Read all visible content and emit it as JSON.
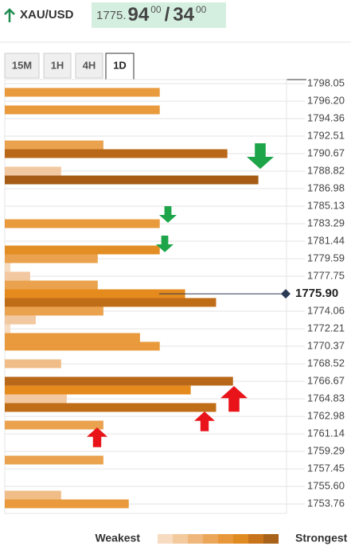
{
  "chart_data": {
    "type": "bar",
    "orientation": "horizontal",
    "symbol": "XAU/USD",
    "quote": {
      "big_figure": "1775.",
      "bid": "94",
      "bid_pips": "00",
      "separator": "/",
      "ask": "34",
      "ask_pips": "00"
    },
    "timeframes": [
      "15M",
      "1H",
      "4H",
      "1D"
    ],
    "active_timeframe": 3,
    "ylim": [
      1752.76,
      1798.47
    ],
    "xlim": [
      0,
      100
    ],
    "yticks": [
      1798.05,
      {
        "value": 1796.2,
        "label": "1796.20"
      },
      1794.36,
      1792.51,
      1790.67,
      1788.82,
      1786.98,
      1785.13,
      1783.29,
      1781.44,
      1779.59,
      1777.75,
      1774.06,
      1772.21,
      1770.37,
      1768.52,
      1766.67,
      1764.83,
      1762.98,
      1761.14,
      1759.29,
      1757.45,
      {
        "value": 1755.6,
        "label": "1755.60"
      },
      1753.76
    ],
    "current_price": {
      "value": 1775.9,
      "label": "1775.90"
    },
    "y": [
      1797.13,
      1795.28,
      1791.59,
      1790.67,
      1788.83,
      1787.9,
      1783.29,
      1780.52,
      1779.6,
      1778.68,
      1777.76,
      1776.83,
      1775.91,
      1774.99,
      1774.07,
      1773.14,
      1772.22,
      1771.3,
      1770.38,
      1768.53,
      1766.69,
      1765.76,
      1764.84,
      1763.92,
      1762.07,
      1758.38,
      1754.69,
      1753.77
    ],
    "values": [
      55,
      55,
      35,
      79,
      20,
      90,
      55,
      55,
      33,
      2,
      9,
      33,
      64,
      75,
      35,
      11,
      2,
      48,
      55,
      20,
      81,
      66,
      22,
      75,
      35,
      35,
      20,
      44
    ],
    "colors": [
      "#e89a3c",
      "#e89a3c",
      "#eaa24e",
      "#b86818",
      "#f2c8a0",
      "#a65c14",
      "#e89a3c",
      "#e28e24",
      "#eaa24e",
      "#f6dcc0",
      "#f2c8a0",
      "#eaa24e",
      "#e58a1c",
      "#c06d18",
      "#eaa24e",
      "#f2c8a0",
      "#f6dcc0",
      "#e89a3c",
      "#e89a3c",
      "#f0bd88",
      "#b86818",
      "#e58a1c",
      "#f2c8a0",
      "#c06d18",
      "#eaa24e",
      "#eaa24e",
      "#f0bd88",
      "#e89a3c"
    ],
    "legend": {
      "weak": "Weakest",
      "strong": "Strongest",
      "colors": [
        "#f7dcc2",
        "#f3c99e",
        "#efb77c",
        "#eba65a",
        "#e8973b",
        "#e08a22",
        "#c8741a",
        "#a8621a"
      ]
    }
  }
}
